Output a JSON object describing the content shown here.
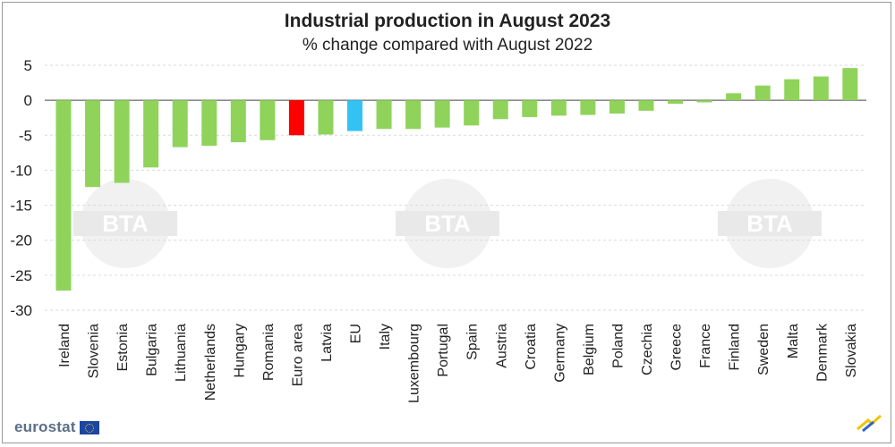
{
  "chart_data": {
    "type": "bar",
    "title": "Industrial production in August 2023",
    "subtitle": "% change compared with August 2022",
    "xlabel": "",
    "ylabel": "",
    "ylim": [
      -30,
      5
    ],
    "yticks": [
      5,
      0,
      -5,
      -10,
      -15,
      -20,
      -25,
      -30
    ],
    "grid": true,
    "categories": [
      "Ireland",
      "Slovenia",
      "Estonia",
      "Bulgaria",
      "Lithuania",
      "Netherlands",
      "Hungary",
      "Romania",
      "Euro area",
      "Latvia",
      "EU",
      "Italy",
      "Luxembourg",
      "Portugal",
      "Spain",
      "Austria",
      "Croatia",
      "Germany",
      "Belgium",
      "Poland",
      "Czechia",
      "Greece",
      "France",
      "Finland",
      "Sweden",
      "Malta",
      "Denmark",
      "Slovakia"
    ],
    "values": [
      -27.2,
      -12.4,
      -11.8,
      -9.6,
      -6.7,
      -6.5,
      -6.0,
      -5.7,
      -5.0,
      -4.9,
      -4.4,
      -4.1,
      -4.1,
      -3.9,
      -3.6,
      -2.7,
      -2.4,
      -2.2,
      -2.1,
      -1.9,
      -1.5,
      -0.5,
      -0.3,
      1.0,
      2.1,
      3.0,
      3.4,
      4.6
    ],
    "colors": {
      "default": "#8fd35b",
      "Euro area": "#ff0000",
      "EU": "#33c3f3"
    }
  },
  "watermark": "BTA",
  "branding": {
    "logo_text": "eurostat"
  }
}
